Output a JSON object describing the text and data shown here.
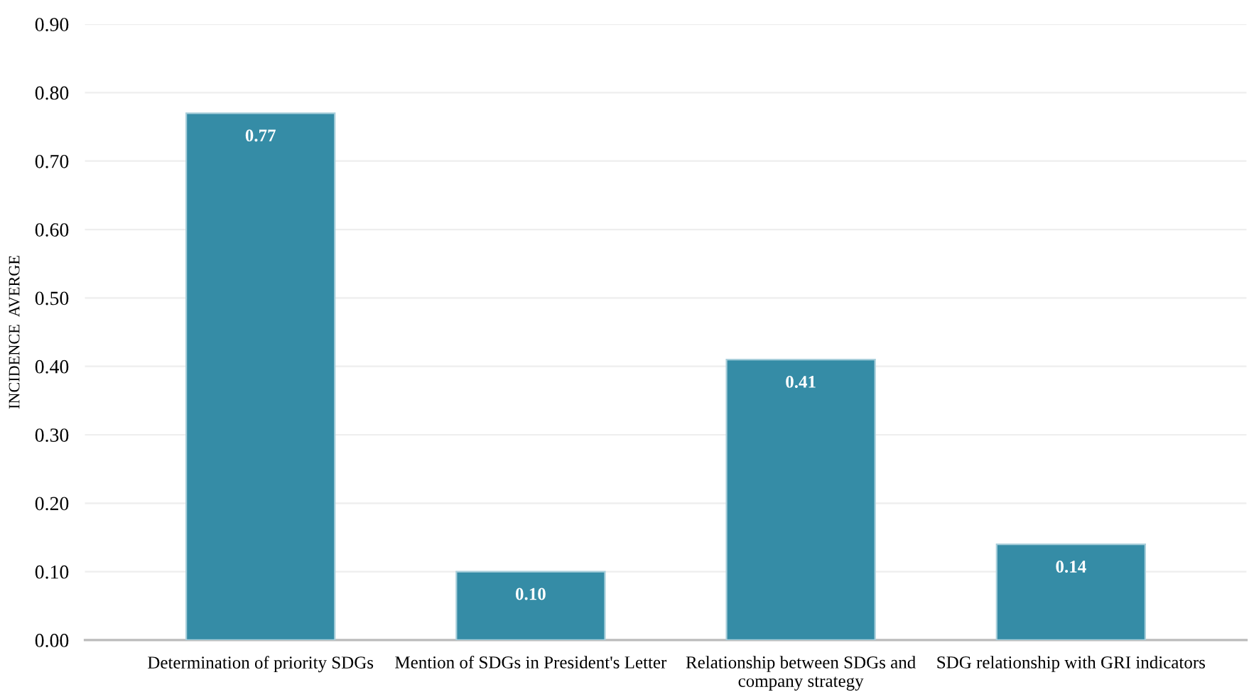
{
  "chart_data": {
    "type": "bar",
    "ylabel": "INCIDENCE  AVERGE",
    "categories": [
      "Determination of priority SDGs",
      "Mention of SDGs in President's Letter",
      "Relationship between SDGs and\ncompany strategy",
      "SDG relationship with GRI indicators"
    ],
    "values": [
      0.77,
      0.1,
      0.41,
      0.14
    ],
    "color": "#358ca6",
    "value_labels": [
      "0.77",
      "0.10",
      "0.41",
      "0.14"
    ],
    "ylim": [
      0,
      0.9
    ],
    "yticks": [
      {
        "value": 0,
        "label": "0.00"
      },
      {
        "value": 0.1,
        "label": "0.10"
      },
      {
        "value": 0.2,
        "label": "0.20"
      },
      {
        "value": 0.3,
        "label": "0.30"
      },
      {
        "value": 0.4,
        "label": "0.40"
      },
      {
        "value": 0.5,
        "label": "0.50"
      },
      {
        "value": 0.6,
        "label": "0.60"
      },
      {
        "value": 0.7,
        "label": "0.70"
      },
      {
        "value": 0.8,
        "label": "0.80"
      },
      {
        "value": 0.9,
        "label": "0.90"
      }
    ],
    "grid": "y"
  }
}
